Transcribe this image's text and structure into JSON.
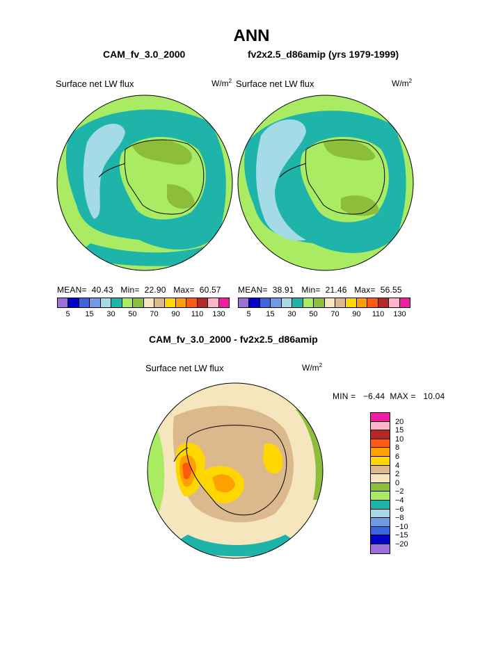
{
  "title": "ANN",
  "panels": [
    {
      "case": "CAM_fv_3.0_2000",
      "variable": "Surface net LW flux",
      "units_base": "W/m",
      "units_exp": "2",
      "stats": "MEAN=  40.43   Min=  22.90   Max=  60.57"
    },
    {
      "case": "fv2x2.5_d86amip (yrs 1979-1999)",
      "variable": "Surface net LW flux",
      "units_base": "W/m",
      "units_exp": "2",
      "stats": "MEAN=  38.91   Min=  21.46   Max=  56.55"
    }
  ],
  "top_colorbar": {
    "colors": [
      "#9b71d7",
      "#0000c8",
      "#3c64dc",
      "#6e9be6",
      "#a5dbe6",
      "#1eb4aa",
      "#aaeb64",
      "#8cbe3c",
      "#f5e6be",
      "#dcb98c",
      "#ffd700",
      "#ffa000",
      "#ff5a14",
      "#b42828",
      "#ffb4c8",
      "#f01ea0"
    ],
    "tick_labels": [
      "5",
      "15",
      "30",
      "50",
      "70",
      "90",
      "110",
      "130"
    ]
  },
  "diff": {
    "title": "CAM_fv_3.0_2000 - fv2x2.5_d86amip",
    "variable": "Surface net LW flux",
    "units_base": "W/m",
    "units_exp": "2",
    "stats": "MIN =   −6.44  MAX =   10.04"
  },
  "diff_colorbar": {
    "colors": [
      "#f01ea0",
      "#ffb4c8",
      "#b42828",
      "#ff5a14",
      "#ffa000",
      "#ffd700",
      "#dcb98c",
      "#f5e6be",
      "#8cbe3c",
      "#aaeb64",
      "#1eb4aa",
      "#a5dbe6",
      "#6e9be6",
      "#3c64dc",
      "#0000c8",
      "#9b71d7"
    ],
    "tick_labels": [
      "20",
      "15",
      "10",
      "8",
      "6",
      "4",
      "2",
      "0",
      "−2",
      "−4",
      "−6",
      "−8",
      "−10",
      "−15",
      "−20"
    ]
  },
  "legend_colors": {
    "teal": "#1eb4aa",
    "light_green": "#aaeb64",
    "olive_green": "#8cbe3c",
    "light_blue": "#a5dbe6",
    "tan": "#dcb98c",
    "cream": "#f5e6be",
    "yellow": "#ffd700",
    "orange": "#ffa000",
    "red_orange": "#ff5a14"
  }
}
